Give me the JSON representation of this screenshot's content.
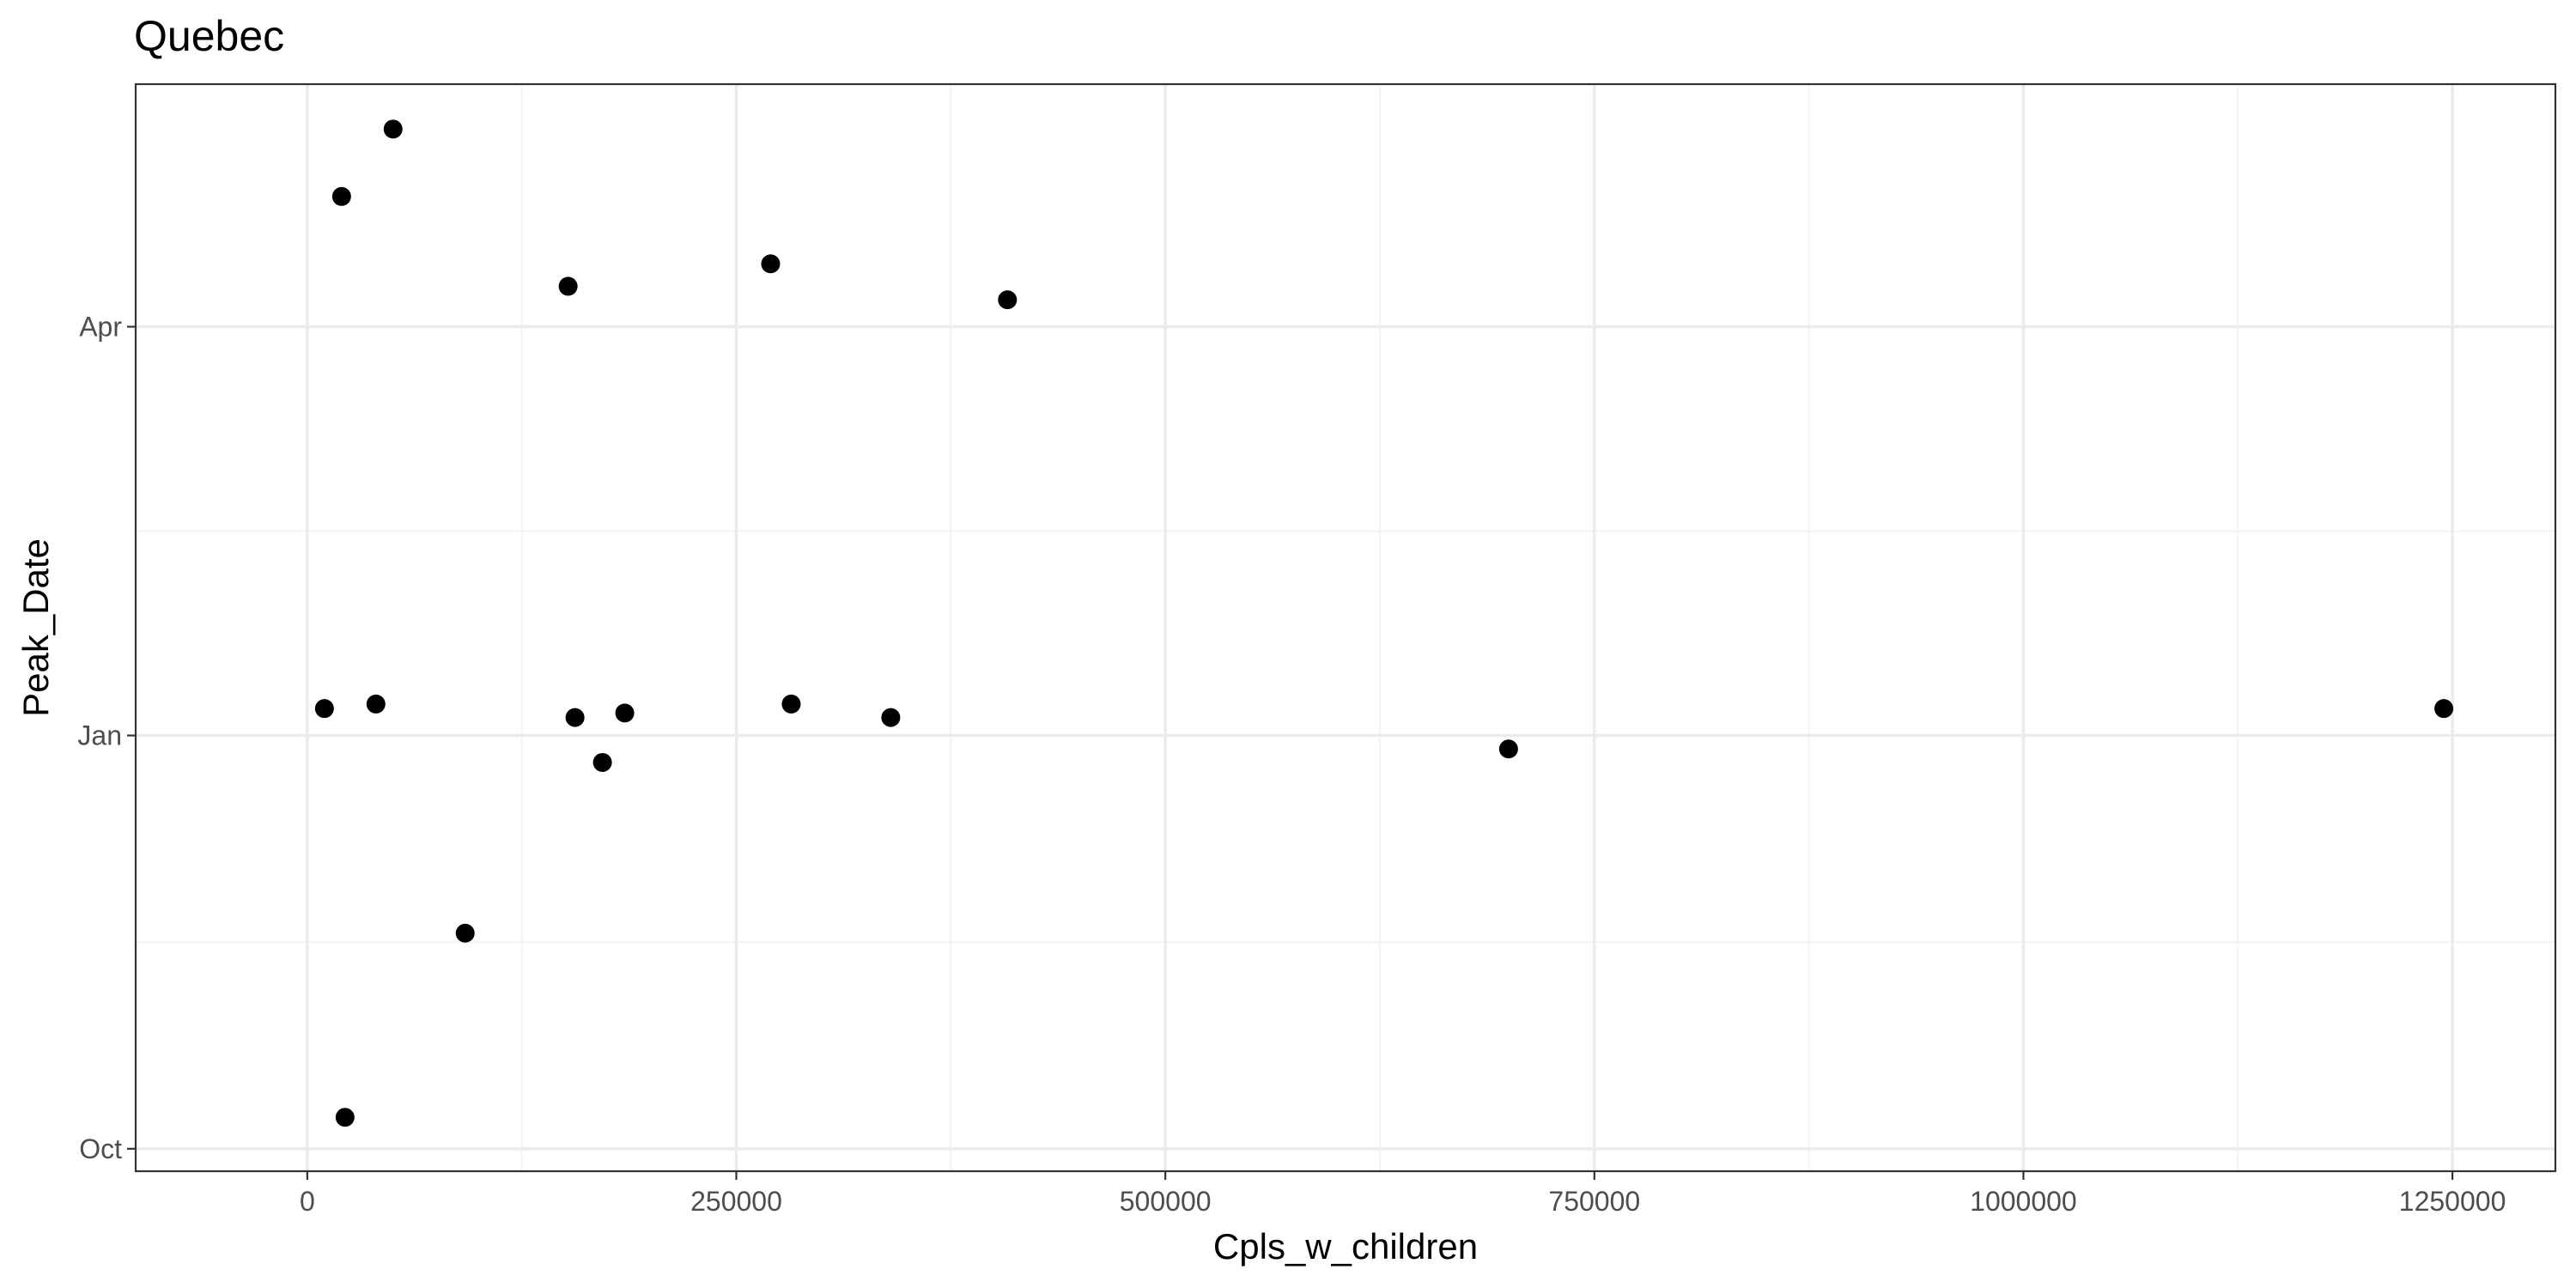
{
  "chart_data": {
    "type": "scatter",
    "title": "Quebec",
    "xlabel": "Cpls_w_children",
    "ylabel": "Peak_Date",
    "xlim": [
      -100000,
      1310000
    ],
    "ylim": [
      "2019-09-26",
      "2020-05-25"
    ],
    "grid": true,
    "x_ticks": [
      {
        "value": 0,
        "label": "0"
      },
      {
        "value": 250000,
        "label": "250000"
      },
      {
        "value": 500000,
        "label": "500000"
      },
      {
        "value": 750000,
        "label": "750000"
      },
      {
        "value": 1000000,
        "label": "1000000"
      },
      {
        "value": 1250000,
        "label": "1250000"
      }
    ],
    "y_ticks": [
      {
        "value": "2019-10-01",
        "label": "Oct"
      },
      {
        "value": "2020-01-01",
        "label": "Jan"
      },
      {
        "value": "2020-04-01",
        "label": "Apr"
      }
    ],
    "points": [
      {
        "x": 50000,
        "y": "2020-05-15"
      },
      {
        "x": 20000,
        "y": "2020-04-30"
      },
      {
        "x": 270000,
        "y": "2020-04-15"
      },
      {
        "x": 152000,
        "y": "2020-04-10"
      },
      {
        "x": 408000,
        "y": "2020-04-07"
      },
      {
        "x": 10000,
        "y": "2020-01-07"
      },
      {
        "x": 40000,
        "y": "2020-01-08"
      },
      {
        "x": 282000,
        "y": "2020-01-08"
      },
      {
        "x": 156000,
        "y": "2020-01-05"
      },
      {
        "x": 185000,
        "y": "2020-01-06"
      },
      {
        "x": 340000,
        "y": "2020-01-05"
      },
      {
        "x": 1245000,
        "y": "2020-01-07"
      },
      {
        "x": 172000,
        "y": "2019-12-26"
      },
      {
        "x": 700000,
        "y": "2019-12-29"
      },
      {
        "x": 92000,
        "y": "2019-11-18"
      },
      {
        "x": 22000,
        "y": "2019-10-08"
      }
    ]
  }
}
